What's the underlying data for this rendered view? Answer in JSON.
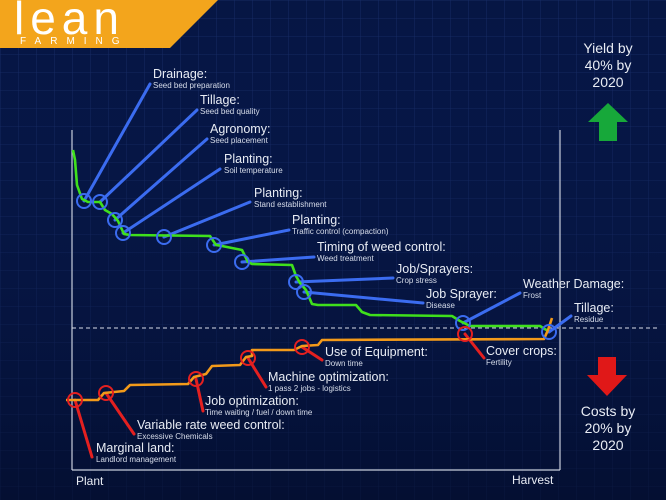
{
  "logo": {
    "main": "lean",
    "sub": "FARMING"
  },
  "yield_note": {
    "line1": "Yield by",
    "line2": "40% by",
    "line3": "2020"
  },
  "cost_note": {
    "line1": "Costs by",
    "line2": "20% by",
    "line3": "2020"
  },
  "axis": {
    "start": "Plant",
    "end": "Harvest"
  },
  "colors": {
    "background": "#061644",
    "yield_line": "#3fe01c",
    "cost_line": "#f39a1a",
    "yield_callout": "#3b6cf0",
    "cost_callout": "#e42020",
    "logo_bg": "#f3a51c",
    "up_arrow": "#17a83a",
    "down_arrow": "#e01818"
  },
  "yield_factors": [
    {
      "title": "Drainage:",
      "detail": "Seed bed preparation"
    },
    {
      "title": "Tillage:",
      "detail": "Seed bed quality"
    },
    {
      "title": "Agronomy:",
      "detail": "Seed placement"
    },
    {
      "title": "Planting:",
      "detail": "Soil temperature"
    },
    {
      "title": "Planting:",
      "detail": "Stand establishment"
    },
    {
      "title": "Planting:",
      "detail": "Traffic control (compaction)"
    },
    {
      "title": "Timing of weed control:",
      "detail": "Weed treatment"
    },
    {
      "title": "Job/Sprayers:",
      "detail": "Crop stress"
    },
    {
      "title": "Job Sprayer:",
      "detail": "Disease"
    },
    {
      "title": "Weather Damage:",
      "detail": "Frost"
    },
    {
      "title": "Tillage:",
      "detail": "Residue"
    }
  ],
  "cost_factors": [
    {
      "title": "Marginal land:",
      "detail": "Landlord management"
    },
    {
      "title": "Variable rate weed control:",
      "detail": "Excessive Chemicals"
    },
    {
      "title": "Job optimization:",
      "detail": "Time waiting / fuel / down time"
    },
    {
      "title": "Machine optimization:",
      "detail": "1 pass 2 jobs - logistics"
    },
    {
      "title": "Use of Equipment:",
      "detail": "Down time"
    },
    {
      "title": "Cover crops:",
      "detail": "Fertility"
    }
  ]
}
